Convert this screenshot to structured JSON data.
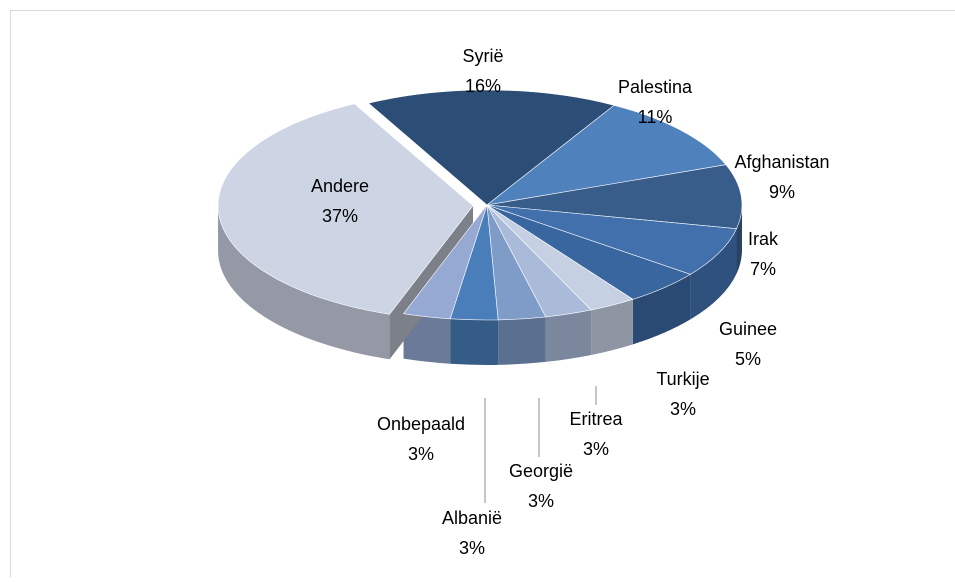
{
  "chart_data": {
    "type": "pie3d",
    "categories": [
      "Syrië",
      "Palestina",
      "Afghanistan",
      "Irak",
      "Guinee",
      "Turkije",
      "Eritrea",
      "Georgië",
      "Albanië",
      "Onbepaald",
      "Andere"
    ],
    "values": [
      16,
      11,
      9,
      7,
      5,
      3,
      3,
      3,
      3,
      3,
      37
    ],
    "value_labels": [
      "16%",
      "11%",
      "9%",
      "7%",
      "5%",
      "3%",
      "3%",
      "3%",
      "3%",
      "3%",
      "37%"
    ],
    "colors": [
      "#2c4d75",
      "#4f81bd",
      "#385d8a",
      "#4170ad",
      "#3a66a0",
      "#c5d0e3",
      "#a9bbd9",
      "#7f9bc8",
      "#4a7ebb",
      "#95a9d3",
      "#cdd5e5"
    ]
  }
}
